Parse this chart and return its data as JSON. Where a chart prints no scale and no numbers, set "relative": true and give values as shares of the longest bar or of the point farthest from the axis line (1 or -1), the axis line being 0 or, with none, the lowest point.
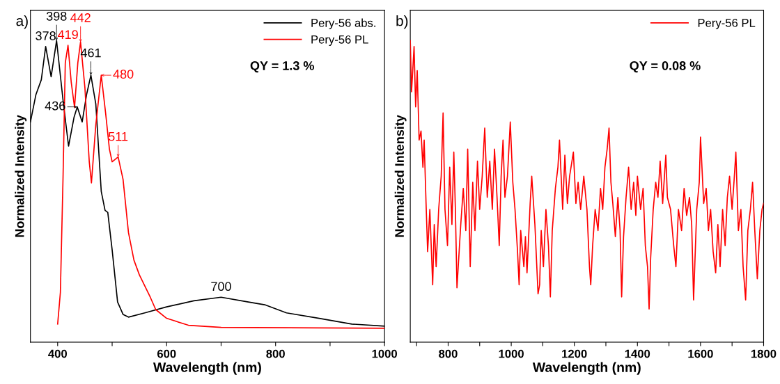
{
  "chart_data": [
    {
      "type": "line",
      "title": "a)",
      "xlabel": "Wavelength (nm)",
      "ylabel": "Normalized Intensity",
      "relative": true,
      "legend": "top right",
      "grid": false,
      "xlim": [
        350,
        1000
      ],
      "xticks": [
        400,
        {
          "value": 500,
          "label": null
        },
        600,
        {
          "value": 700,
          "label": null
        },
        800,
        {
          "value": 900,
          "label": null
        },
        1000
      ],
      "series": [
        {
          "name": "Pery-56 abs.",
          "color": "#000000",
          "x": [
            350,
            360,
            370,
            378,
            388,
            398,
            410,
            420,
            430,
            436,
            445,
            453,
            461,
            470,
            480,
            487,
            492,
            500,
            510,
            520,
            530,
            560,
            600,
            650,
            700,
            750,
            780,
            820,
            880,
            940,
            1000
          ],
          "values": [
            0.73,
            0.82,
            0.87,
            0.98,
            0.88,
            1.0,
            0.8,
            0.65,
            0.745,
            0.78,
            0.73,
            0.82,
            0.885,
            0.79,
            0.5,
            0.437,
            0.43,
            0.306,
            0.133,
            0.092,
            0.083,
            0.097,
            0.117,
            0.137,
            0.149,
            0.133,
            0.124,
            0.097,
            0.079,
            0.06,
            0.053
          ]
        },
        {
          "name": "Pery-56 PL",
          "color": "#ff0000",
          "x": [
            400,
            405,
            410,
            414,
            419,
            425,
            431,
            437,
            442,
            450,
            458,
            462,
            470,
            480,
            488,
            495,
            500,
            511,
            520,
            530,
            540,
            550,
            570,
            580,
            600,
            640,
            700,
            1000
          ],
          "values": [
            0.06,
            0.165,
            0.556,
            0.926,
            0.984,
            0.86,
            0.778,
            0.926,
            0.995,
            0.844,
            0.598,
            0.528,
            0.72,
            0.885,
            0.76,
            0.64,
            0.598,
            0.614,
            0.54,
            0.363,
            0.272,
            0.223,
            0.149,
            0.108,
            0.079,
            0.056,
            0.049,
            0.046
          ]
        }
      ],
      "annotations": [
        {
          "text": "378",
          "x": 378,
          "y": 0.98
        },
        {
          "text": "398",
          "x": 398,
          "y": 1.0
        },
        {
          "text": "419",
          "x": 419,
          "y": 0.984
        },
        {
          "text": "442",
          "x": 442,
          "y": 0.995
        },
        {
          "text": "436",
          "x": 436,
          "y": 0.78
        },
        {
          "text": "461",
          "x": 461,
          "y": 0.885
        },
        {
          "text": "480",
          "x": 480,
          "y": 0.885
        },
        {
          "text": "511",
          "x": 511,
          "y": 0.614
        },
        {
          "text": "700",
          "x": 700,
          "y": 0.149
        },
        "QY = 1.3 %"
      ]
    },
    {
      "type": "line",
      "title": "b)",
      "xlabel": "Wavelength (nm)",
      "ylabel": "Normalized Intensity",
      "relative": true,
      "legend": "top right",
      "grid": false,
      "xlim": [
        680,
        1800
      ],
      "xticks": [
        {
          "value": 700,
          "label": null
        },
        800,
        {
          "value": 900,
          "label": null
        },
        1000,
        {
          "value": 1100,
          "label": null
        },
        1200,
        {
          "value": 1300,
          "label": null
        },
        1400,
        {
          "value": 1500,
          "label": null
        },
        1600,
        {
          "value": 1700,
          "label": null
        },
        1800
      ],
      "series": [
        {
          "name": "Pery-56 PL",
          "color": "#ff0000",
          "x": [
            680,
            684,
            692,
            697,
            702,
            708,
            714,
            720,
            724,
            730,
            735,
            742,
            751,
            756,
            762,
            770,
            778,
            784,
            790,
            798,
            805,
            812,
            818,
            823,
            828,
            840,
            848,
            856,
            862,
            870,
            878,
            885,
            893,
            900,
            908,
            916,
            924,
            932,
            940,
            947,
            955,
            962,
            968,
            974,
            980,
            988,
            997,
            1005,
            1012,
            1020,
            1025,
            1030,
            1040,
            1045,
            1050,
            1060,
            1065,
            1075,
            1085,
            1090,
            1095,
            1102,
            1110,
            1118,
            1124,
            1130,
            1140,
            1148,
            1153,
            1163,
            1170,
            1178,
            1185,
            1197,
            1205,
            1212,
            1220,
            1230,
            1240,
            1248,
            1252,
            1258,
            1266,
            1275,
            1283,
            1290,
            1297,
            1304,
            1310,
            1316,
            1322,
            1330,
            1338,
            1345,
            1350,
            1356,
            1364,
            1372,
            1380,
            1388,
            1395,
            1400,
            1410,
            1418,
            1425,
            1432,
            1437,
            1442,
            1450,
            1458,
            1465,
            1472,
            1480,
            1490,
            1495,
            1505,
            1515,
            1522,
            1530,
            1540,
            1548,
            1556,
            1565,
            1572,
            1578,
            1588,
            1596,
            1600,
            1610,
            1618,
            1625,
            1632,
            1640,
            1648,
            1655,
            1662,
            1670,
            1678,
            1685,
            1692,
            1700,
            1706,
            1712,
            1720,
            1728,
            1735,
            1743,
            1750,
            1758,
            1765,
            1772,
            1780,
            1788,
            1795,
            1800
          ],
          "values": [
            1.0,
            0.83,
            0.98,
            0.78,
            0.9,
            0.67,
            0.7,
            0.58,
            0.67,
            0.46,
            0.3,
            0.44,
            0.19,
            0.39,
            0.25,
            0.44,
            0.55,
            0.76,
            0.44,
            0.32,
            0.58,
            0.39,
            0.63,
            0.44,
            0.18,
            0.39,
            0.51,
            0.37,
            0.64,
            0.25,
            0.53,
            0.37,
            0.6,
            0.44,
            0.55,
            0.71,
            0.48,
            0.6,
            0.44,
            0.64,
            0.48,
            0.32,
            0.55,
            0.67,
            0.48,
            0.55,
            0.73,
            0.53,
            0.44,
            0.3,
            0.19,
            0.37,
            0.25,
            0.35,
            0.23,
            0.46,
            0.55,
            0.39,
            0.16,
            0.19,
            0.37,
            0.25,
            0.44,
            0.32,
            0.15,
            0.37,
            0.51,
            0.58,
            0.67,
            0.44,
            0.62,
            0.46,
            0.55,
            0.63,
            0.46,
            0.53,
            0.44,
            0.55,
            0.44,
            0.25,
            0.19,
            0.32,
            0.44,
            0.37,
            0.51,
            0.44,
            0.58,
            0.64,
            0.71,
            0.53,
            0.46,
            0.35,
            0.48,
            0.37,
            0.15,
            0.35,
            0.48,
            0.58,
            0.44,
            0.53,
            0.42,
            0.55,
            0.44,
            0.51,
            0.32,
            0.25,
            0.11,
            0.28,
            0.44,
            0.53,
            0.48,
            0.6,
            0.46,
            0.62,
            0.48,
            0.44,
            0.32,
            0.25,
            0.44,
            0.37,
            0.51,
            0.42,
            0.48,
            0.39,
            0.14,
            0.44,
            0.53,
            0.68,
            0.46,
            0.51,
            0.37,
            0.44,
            0.3,
            0.23,
            0.39,
            0.25,
            0.44,
            0.32,
            0.48,
            0.55,
            0.44,
            0.53,
            0.63,
            0.37,
            0.44,
            0.25,
            0.14,
            0.37,
            0.44,
            0.53,
            0.37,
            0.21,
            0.37,
            0.44,
            0.46
          ]
        }
      ],
      "annotations": [
        "QY = 0.08 %"
      ]
    }
  ]
}
